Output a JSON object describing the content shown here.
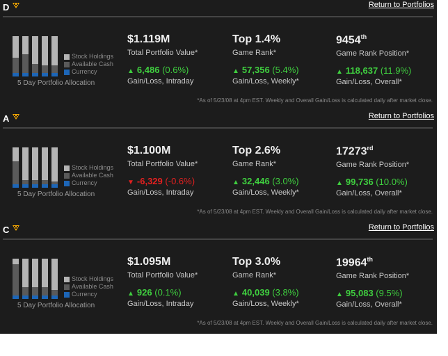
{
  "portfolios": [
    {
      "name": "D",
      "return_link": "Return to Portfolios",
      "total_value": "$1.119M",
      "total_value_label": "Total Portfolio Value*",
      "intraday_amount": "6,486",
      "intraday_pct": "(0.6%)",
      "intraday_direction": "up",
      "intraday_label": "Gain/Loss, Intraday",
      "game_rank": "Top 1.4%",
      "game_rank_label": "Game Rank*",
      "weekly_amount": "57,356",
      "weekly_pct": "(5.4%)",
      "weekly_label": "Gain/Loss, Weekly*",
      "rank_position": "9454",
      "rank_suffix": "th",
      "rank_position_label": "Game Rank Position*",
      "overall_amount": "118,637",
      "overall_pct": "(11.9%)",
      "overall_label": "Gain/Loss, Overall*",
      "allocation_caption": "5 Day Portfolio Allocation",
      "allocation_cash_fraction": [
        0.42,
        0.5,
        0.25,
        0.2,
        0.2
      ],
      "footnote": "*As of 5/23/08 at 4pm EST. Weekly and Overall Gain/Loss is calculated daily after market close."
    },
    {
      "name": "A",
      "return_link": "Return to Portfolios",
      "total_value": "$1.100M",
      "total_value_label": "Total Portfolio Value*",
      "intraday_amount": "-6,329",
      "intraday_pct": "(-0.6%)",
      "intraday_direction": "down",
      "intraday_label": "Gain/Loss, Intraday",
      "game_rank": "Top 2.6%",
      "game_rank_label": "Game Rank*",
      "weekly_amount": "32,446",
      "weekly_pct": "(3.0%)",
      "weekly_label": "Gain/Loss, Weekly*",
      "rank_position": "17273",
      "rank_suffix": "rd",
      "rank_position_label": "Game Rank Position*",
      "overall_amount": "99,736",
      "overall_pct": "(10.0%)",
      "overall_label": "Gain/Loss, Overall*",
      "allocation_caption": "5 Day Portfolio Allocation",
      "allocation_cash_fraction": [
        0.62,
        0.12,
        0.12,
        0.12,
        0.08
      ],
      "footnote": "*As of 5/23/08 at 4pm EST. Weekly and Overall Gain/Loss is calculated daily after market close."
    },
    {
      "name": "C",
      "return_link": "Return to Portfolios",
      "total_value": "$1.095M",
      "total_value_label": "Total Portfolio Value*",
      "intraday_amount": "926",
      "intraday_pct": "(0.1%)",
      "intraday_direction": "up",
      "intraday_label": "Gain/Loss, Intraday",
      "game_rank": "Top 3.0%",
      "game_rank_label": "Game Rank*",
      "weekly_amount": "40,039",
      "weekly_pct": "(3.8%)",
      "weekly_label": "Gain/Loss, Weekly*",
      "rank_position": "19964",
      "rank_suffix": "th",
      "rank_position_label": "Game Rank Position*",
      "overall_amount": "95,083",
      "overall_pct": "(9.5%)",
      "overall_label": "Gain/Loss, Overall*",
      "allocation_caption": "5 Day Portfolio Allocation",
      "allocation_cash_fraction": [
        0.85,
        0.22,
        0.22,
        0.22,
        0.15
      ],
      "footnote": "*As of 5/23/08 at 4pm EST. Weekly and Overall Gain/Loss is calculated daily after market close."
    }
  ],
  "legend": {
    "stock": "Stock Holdings",
    "cash": "Available Cash",
    "currency": "Currency"
  },
  "colors": {
    "panel_bg": "#1c1c1c",
    "gain": "#3fce3f",
    "loss": "#e32020",
    "stock": "#b4b4b4",
    "cash": "#5a5a5a",
    "currency": "#1d66b7",
    "icon": "#f5a800"
  },
  "icons": {
    "panel_marker": "checkered-diamond-icon",
    "up": "triangle-up-icon",
    "down": "triangle-down-icon"
  }
}
